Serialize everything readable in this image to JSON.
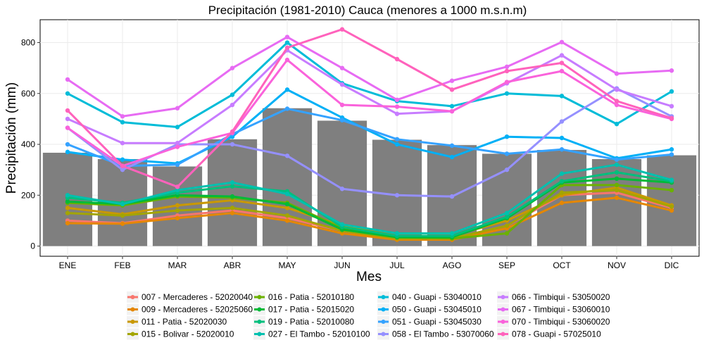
{
  "chart_data": {
    "type": "bar+line",
    "title": "Precipitación (1981-2010) Cauca (menores a 1000 m.s.n.m)",
    "xlabel": "Mes",
    "ylabel": "Precipitación (mm)",
    "categories": [
      "ENE",
      "FEB",
      "MAR",
      "ABR",
      "MAY",
      "JUN",
      "JUL",
      "AGO",
      "SEP",
      "OCT",
      "NOV",
      "DIC"
    ],
    "ylim": [
      -40,
      890
    ],
    "yticks": [
      0,
      200,
      400,
      600,
      800
    ],
    "grid": true,
    "legend_position": "bottom",
    "bar_color": "#7f7f7f",
    "bars": [
      367,
      342,
      313,
      420,
      542,
      493,
      418,
      397,
      363,
      378,
      342,
      357
    ],
    "series": [
      {
        "name": "007 - Mercaderes - 52020040",
        "color": "#F8766D",
        "values": [
          100,
          90,
          120,
          140,
          110,
          60,
          30,
          30,
          80,
          200,
          210,
          150
        ]
      },
      {
        "name": "009 - Mercaderes - 52025060",
        "color": "#E58700",
        "values": [
          90,
          88,
          110,
          130,
          100,
          50,
          25,
          25,
          70,
          170,
          190,
          140
        ]
      },
      {
        "name": "011 - Patia - 52020030",
        "color": "#C99800",
        "values": [
          150,
          125,
          160,
          180,
          150,
          80,
          40,
          40,
          100,
          200,
          230,
          160
        ]
      },
      {
        "name": "015 - Bolivar - 52020010",
        "color": "#A3A500",
        "values": [
          130,
          120,
          140,
          150,
          120,
          60,
          30,
          30,
          80,
          210,
          220,
          155
        ]
      },
      {
        "name": "016 - Patia - 52010180",
        "color": "#6BB100",
        "values": [
          170,
          160,
          195,
          190,
          170,
          70,
          35,
          30,
          50,
          240,
          240,
          220
        ]
      },
      {
        "name": "017 - Patia - 52015020",
        "color": "#00BA38",
        "values": [
          175,
          165,
          200,
          195,
          165,
          65,
          35,
          35,
          110,
          250,
          265,
          250
        ]
      },
      {
        "name": "019 - Patia - 52010080",
        "color": "#00BF7D",
        "values": [
          190,
          170,
          210,
          235,
          215,
          75,
          40,
          40,
          115,
          255,
          290,
          255
        ]
      },
      {
        "name": "027 - El Tambo - 52010100",
        "color": "#00C0AF",
        "values": [
          200,
          165,
          220,
          250,
          205,
          85,
          50,
          50,
          130,
          285,
          320,
          260
        ]
      },
      {
        "name": "040 - Guapi - 53040010",
        "color": "#00BCD8",
        "values": [
          600,
          487,
          468,
          595,
          800,
          640,
          570,
          550,
          600,
          590,
          480,
          608
        ]
      },
      {
        "name": "050 - Guapi - 53045010",
        "color": "#00B0F6",
        "values": [
          370,
          340,
          325,
          430,
          615,
          505,
          400,
          350,
          430,
          425,
          345,
          380
        ]
      },
      {
        "name": "051 - Guapi - 53045030",
        "color": "#35A2FF",
        "values": [
          400,
          315,
          320,
          440,
          540,
          495,
          420,
          395,
          363,
          380,
          340,
          360
        ]
      },
      {
        "name": "058 - El Tambo - 53070060",
        "color": "#9590FF",
        "values": [
          465,
          300,
          400,
          400,
          355,
          225,
          200,
          195,
          300,
          490,
          620,
          510
        ]
      },
      {
        "name": "066 - Timbiqui - 53050020",
        "color": "#C77CFF",
        "values": [
          500,
          405,
          405,
          555,
          770,
          635,
          520,
          530,
          640,
          750,
          615,
          550
        ]
      },
      {
        "name": "067 - Timbiqui - 53060010",
        "color": "#E76BF3",
        "values": [
          655,
          510,
          542,
          700,
          822,
          700,
          575,
          650,
          705,
          802,
          678,
          690
        ]
      },
      {
        "name": "070 - Timbiqui - 53060020",
        "color": "#FA62DB",
        "values": [
          465,
          315,
          390,
          445,
          732,
          555,
          548,
          530,
          645,
          688,
          555,
          500
        ]
      },
      {
        "name": "078 - Guapi - 57025010",
        "color": "#FF62BC",
        "values": [
          533,
          315,
          233,
          450,
          780,
          852,
          735,
          615,
          688,
          720,
          570,
          503
        ]
      }
    ]
  }
}
